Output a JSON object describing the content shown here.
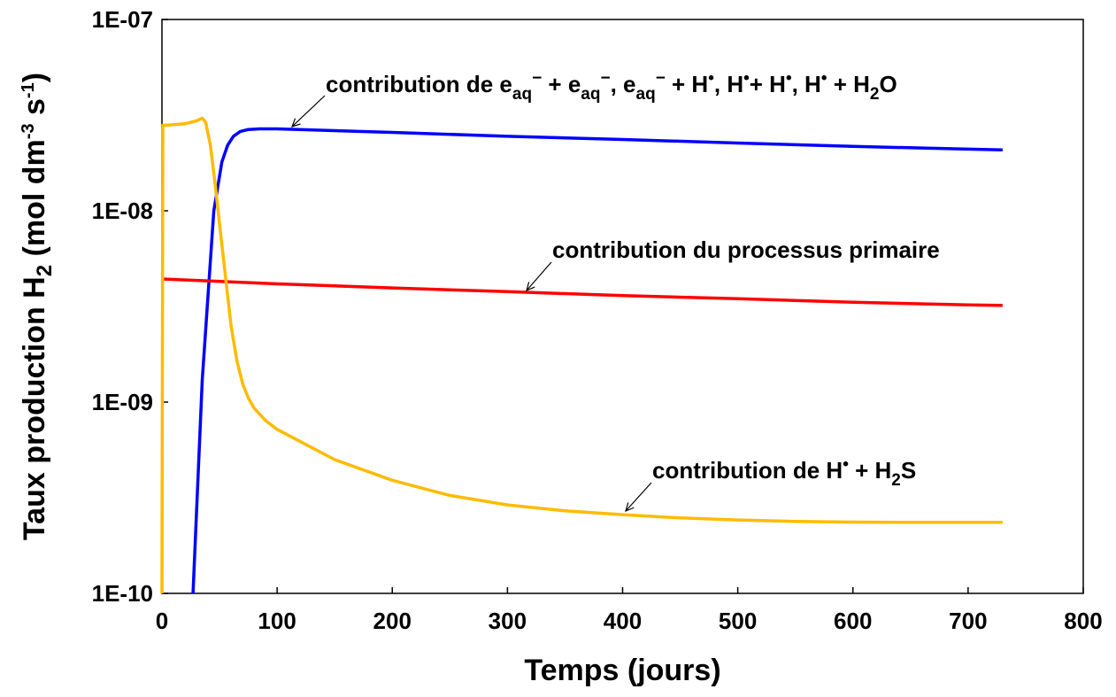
{
  "chart_data": {
    "type": "line",
    "title": "",
    "xlabel": "Temps  (jours)",
    "ylabel": {
      "before_sub": "Taux production H",
      "sub": "2",
      "after_sub": "  (mol dm",
      "sup1": "-3",
      "mid": " s",
      "sup2": "-1",
      "end": ")"
    },
    "xlim": [
      0,
      800
    ],
    "ylim": [
      1e-10,
      1e-07
    ],
    "yscale": "log",
    "x_ticks": [
      0,
      100,
      200,
      300,
      400,
      500,
      600,
      700,
      800
    ],
    "x_tick_labels": [
      "0",
      "100",
      "200",
      "300",
      "400",
      "500",
      "600",
      "700",
      "800"
    ],
    "y_ticks": [
      1e-10,
      1e-09,
      1e-08,
      1e-07
    ],
    "y_tick_labels": [
      "1E-10",
      "1E-09",
      "1E-08",
      "1E-07"
    ],
    "grid": false,
    "legend": "none",
    "series": [
      {
        "color": "#0000ff",
        "x": [
          27,
          35,
          45,
          52,
          57,
          62,
          68,
          75,
          85,
          100,
          200,
          300,
          400,
          500,
          600,
          700,
          730
        ],
        "y": [
          1e-10,
          1.3e-09,
          1e-08,
          1.8e-08,
          2.2e-08,
          2.45e-08,
          2.6e-08,
          2.66e-08,
          2.68e-08,
          2.68e-08,
          2.57e-08,
          2.45e-08,
          2.36e-08,
          2.26e-08,
          2.17e-08,
          2.1e-08,
          2.08e-08
        ]
      },
      {
        "color": "#ff0000",
        "x": [
          0,
          100,
          200,
          300,
          400,
          500,
          600,
          700,
          730
        ],
        "y": [
          4.4e-09,
          4.15e-09,
          3.95e-09,
          3.78e-09,
          3.6e-09,
          3.47e-09,
          3.33e-09,
          3.22e-09,
          3.2e-09
        ]
      },
      {
        "color": "#ffbb00",
        "x": [
          0,
          0.8,
          1.6,
          5,
          10,
          20,
          30,
          35,
          38,
          42,
          46,
          50,
          55,
          60,
          65,
          70,
          75,
          80,
          90,
          100,
          150,
          200,
          250,
          300,
          350,
          400,
          450,
          500,
          550,
          600,
          650,
          700,
          730
        ],
        "y": [
          1e-10,
          2.8e-08,
          2.8e-08,
          2.8e-08,
          2.82e-08,
          2.85e-08,
          2.95e-08,
          3.05e-08,
          2.9e-08,
          2.2e-08,
          1.4e-08,
          8.5e-09,
          4.6e-09,
          2.5e-09,
          1.65e-09,
          1.25e-09,
          1.05e-09,
          9.3e-10,
          8e-10,
          7.2e-10,
          5e-10,
          3.9e-10,
          3.25e-10,
          2.9e-10,
          2.7e-10,
          2.58e-10,
          2.48e-10,
          2.42e-10,
          2.38e-10,
          2.36e-10,
          2.35e-10,
          2.35e-10,
          2.35e-10
        ]
      }
    ],
    "annotations": [
      {
        "id": "blue",
        "parts": [
          {
            "t": "contribution de e",
            "k": "n"
          },
          {
            "t": "aq",
            "k": "sub"
          },
          {
            "t": "−",
            "k": "sup"
          },
          {
            "t": " + e",
            "k": "n"
          },
          {
            "t": "aq",
            "k": "sub"
          },
          {
            "t": "−",
            "k": "sup"
          },
          {
            "t": ",  e",
            "k": "n"
          },
          {
            "t": "aq",
            "k": "sub"
          },
          {
            "t": "−",
            "k": "sup"
          },
          {
            "t": " + H",
            "k": "n"
          },
          {
            "t": "•",
            "k": "sup"
          },
          {
            "t": ",  H",
            "k": "n"
          },
          {
            "t": "•",
            "k": "sup"
          },
          {
            "t": "+ H",
            "k": "n"
          },
          {
            "t": "•",
            "k": "sup"
          },
          {
            "t": ", H",
            "k": "n"
          },
          {
            "t": "•",
            "k": "sup"
          },
          {
            "t": " + H",
            "k": "n"
          },
          {
            "t": "2",
            "k": "sub"
          },
          {
            "t": "O",
            "k": "n"
          }
        ]
      },
      {
        "id": "red",
        "parts": [
          {
            "t": "contribution du processus primaire",
            "k": "n"
          }
        ]
      },
      {
        "id": "orange",
        "parts": [
          {
            "t": "contribution de H",
            "k": "n"
          },
          {
            "t": "•",
            "k": "sup"
          },
          {
            "t": " + H",
            "k": "n"
          },
          {
            "t": "2",
            "k": "sub"
          },
          {
            "t": "S",
            "k": "n"
          }
        ]
      }
    ]
  }
}
